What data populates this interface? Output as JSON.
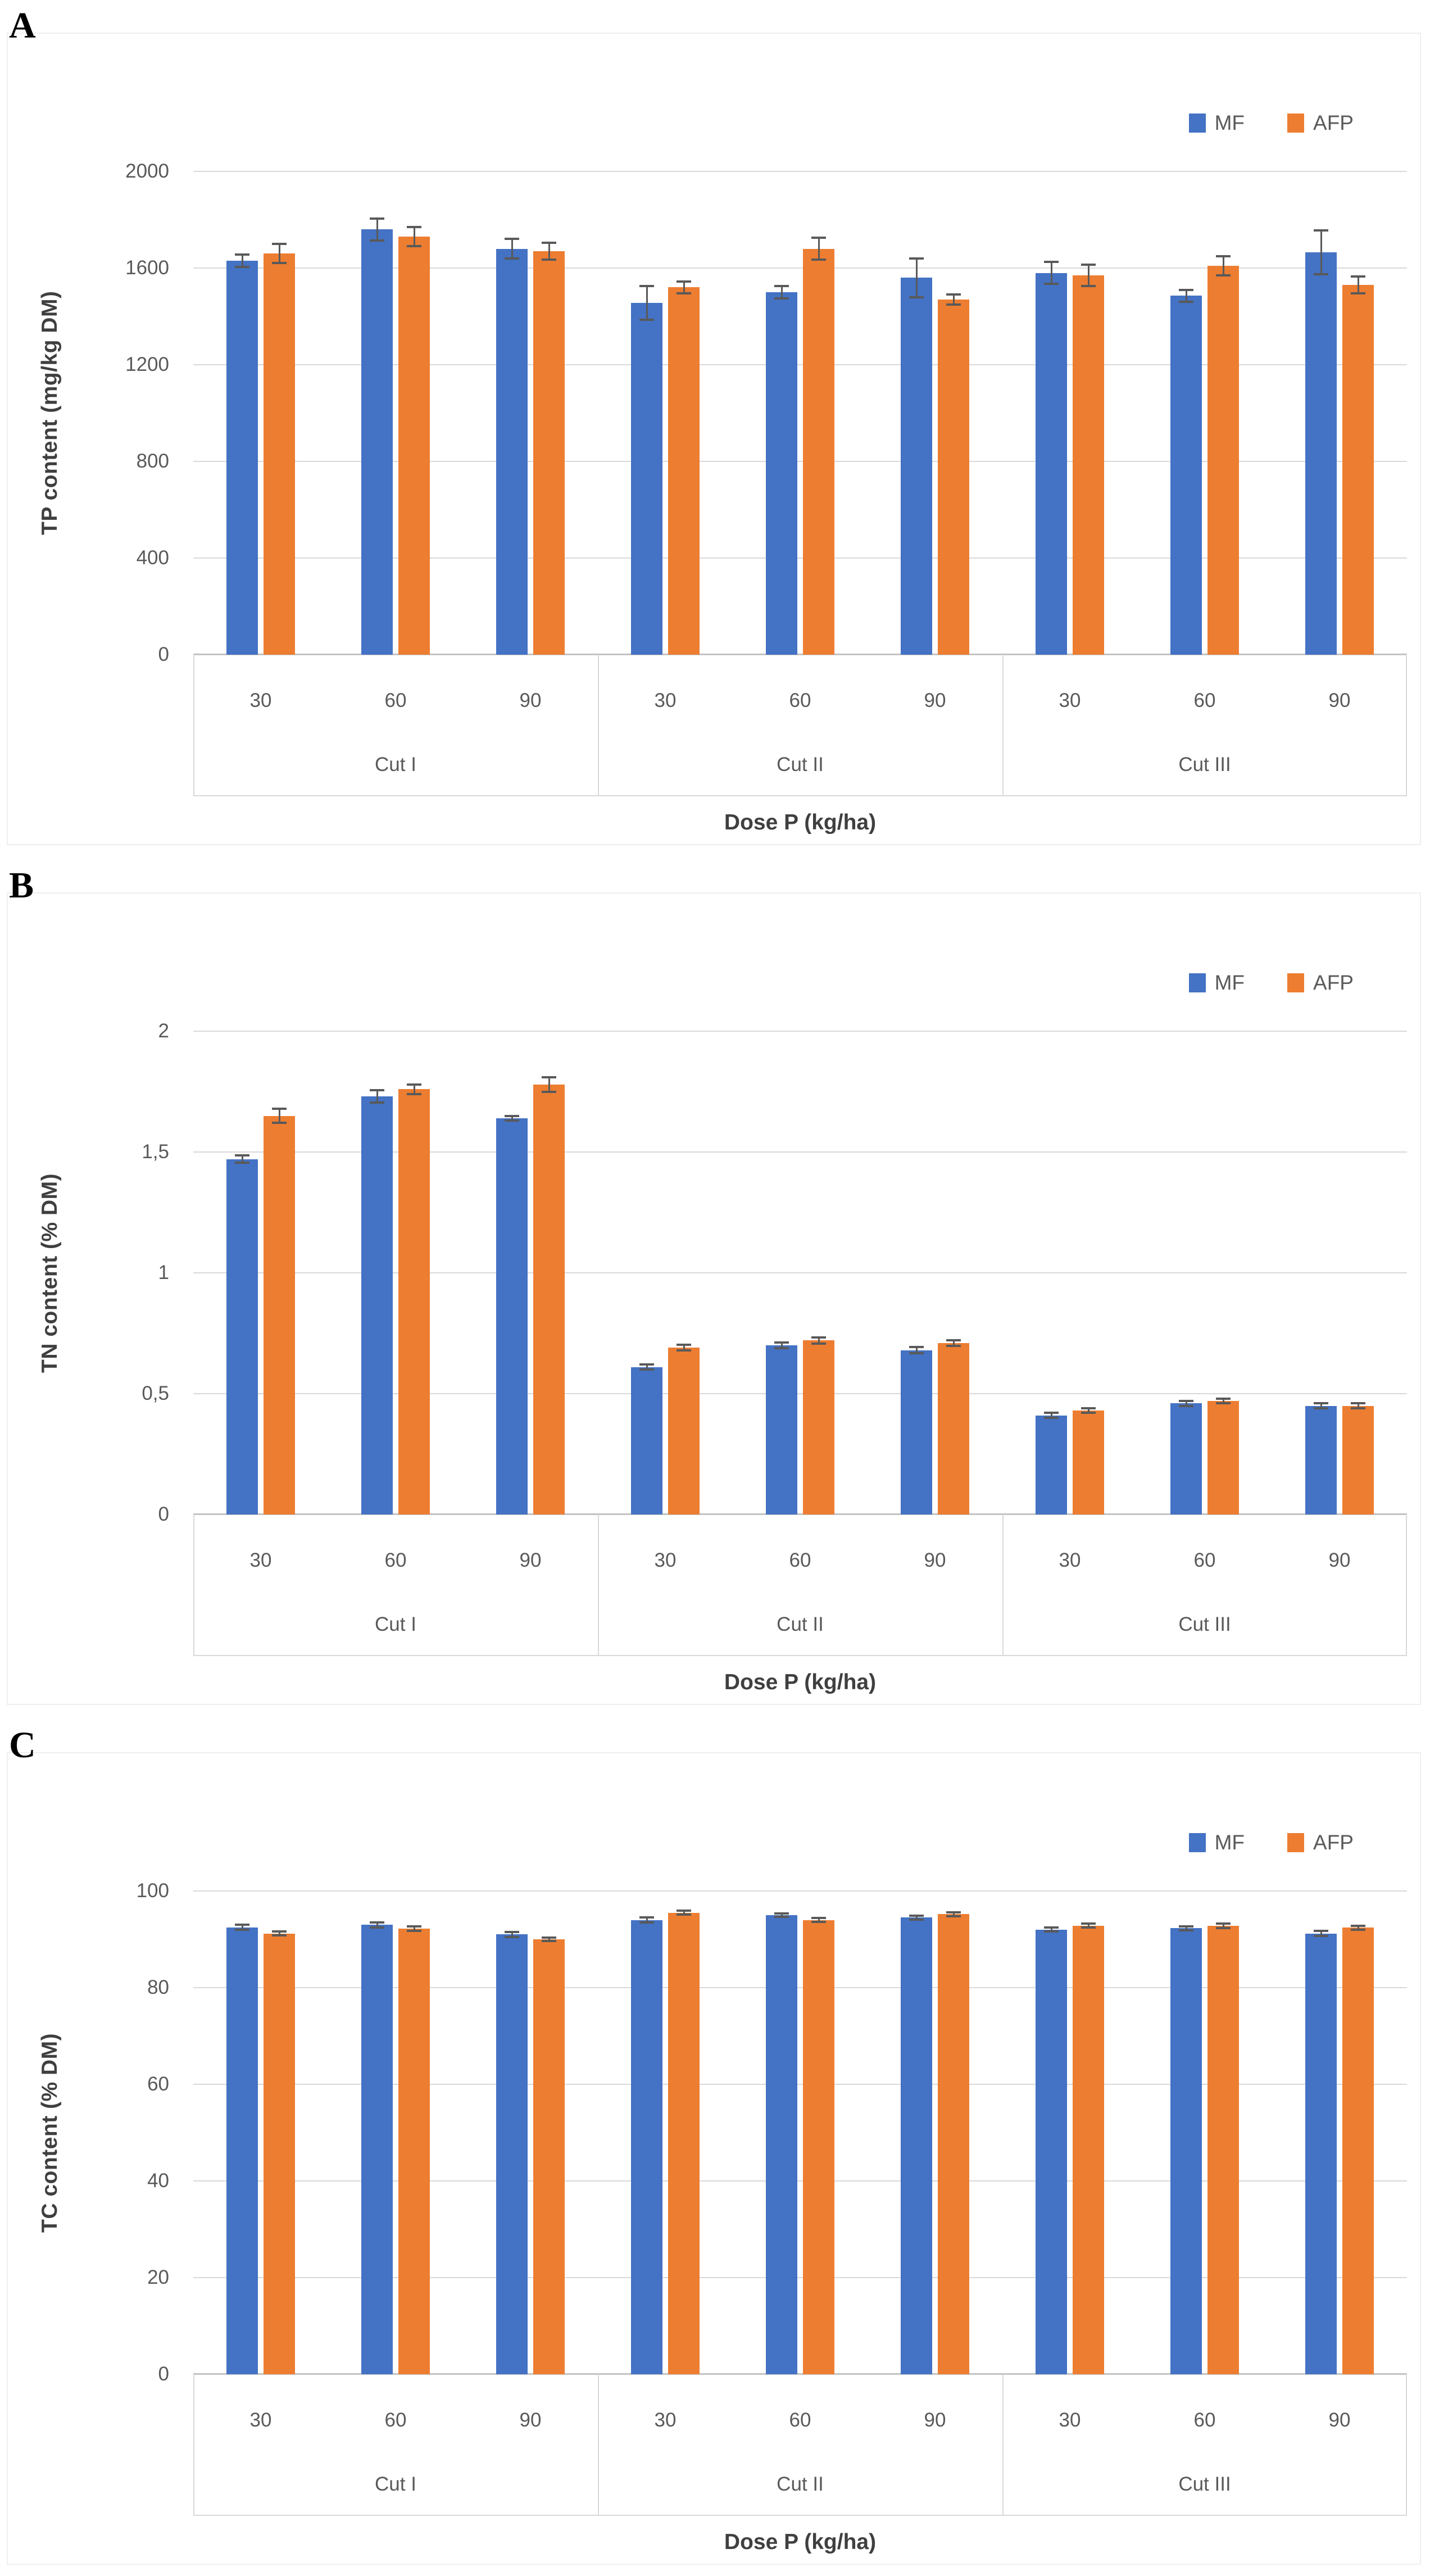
{
  "styles": {
    "mf_color": "#4472C4",
    "afp_color": "#ED7D31",
    "error_bar_color": "#595959",
    "gridline_color": "#D9D9D9",
    "axis_text_color": "#595959",
    "axis_title_color": "#3F3F3F"
  },
  "chart_data": [
    {
      "type": "bar",
      "letter": "A",
      "title": "",
      "ylabel": "TP content  (mg/kg DM)",
      "xlabel": "Dose P (kg/ha)",
      "ylim": [
        0,
        2000
      ],
      "ytick_values": [
        0,
        400,
        800,
        1200,
        1600,
        2000
      ],
      "ytick_labels": [
        "0",
        "400",
        "800",
        "1200",
        "1600",
        "2000"
      ],
      "grid": true,
      "legend_position": "top-right",
      "groups": [
        "Cut I",
        "Cut II",
        "Cut III"
      ],
      "doses": [
        "30",
        "60",
        "90"
      ],
      "series": [
        {
          "name": "MF",
          "color": "#4472C4",
          "values": [
            1630,
            1760,
            1680,
            1455,
            1500,
            1560,
            1580,
            1485,
            1665
          ],
          "errors": [
            25,
            45,
            40,
            70,
            25,
            80,
            45,
            25,
            90
          ]
        },
        {
          "name": "AFP",
          "color": "#ED7D31",
          "values": [
            1660,
            1730,
            1670,
            1520,
            1680,
            1470,
            1570,
            1610,
            1530
          ],
          "errors": [
            40,
            40,
            35,
            25,
            45,
            20,
            45,
            40,
            35
          ]
        }
      ]
    },
    {
      "type": "bar",
      "letter": "B",
      "title": "",
      "ylabel": "TN content  (% DM)",
      "xlabel": "Dose P (kg/ha)",
      "ylim": [
        0,
        2
      ],
      "ytick_values": [
        0,
        0.5,
        1,
        1.5,
        2
      ],
      "ytick_labels": [
        "0",
        "0,5",
        "1",
        "1,5",
        "2"
      ],
      "grid": true,
      "legend_position": "top-right",
      "groups": [
        "Cut I",
        "Cut II",
        "Cut III"
      ],
      "doses": [
        "30",
        "60",
        "90"
      ],
      "series": [
        {
          "name": "MF",
          "color": "#4472C4",
          "values": [
            1.47,
            1.73,
            1.64,
            0.61,
            0.7,
            0.68,
            0.41,
            0.46,
            0.45
          ],
          "errors": [
            0.015,
            0.025,
            0.01,
            0.01,
            0.012,
            0.012,
            0.01,
            0.01,
            0.01
          ]
        },
        {
          "name": "AFP",
          "color": "#ED7D31",
          "values": [
            1.65,
            1.76,
            1.78,
            0.69,
            0.72,
            0.71,
            0.43,
            0.47,
            0.45
          ],
          "errors": [
            0.03,
            0.02,
            0.03,
            0.012,
            0.012,
            0.012,
            0.01,
            0.01,
            0.01
          ]
        }
      ]
    },
    {
      "type": "bar",
      "letter": "C",
      "title": "",
      "ylabel": "TC content  (% DM)",
      "xlabel": "Dose P (kg/ha)",
      "ylim": [
        0,
        100
      ],
      "ytick_values": [
        0,
        20,
        40,
        60,
        80,
        100
      ],
      "ytick_labels": [
        "0",
        "20",
        "40",
        "60",
        "80",
        "100"
      ],
      "grid": true,
      "legend_position": "top-right",
      "groups": [
        "Cut I",
        "Cut II",
        "Cut III"
      ],
      "doses": [
        "30",
        "60",
        "90"
      ],
      "series": [
        {
          "name": "MF",
          "color": "#4472C4",
          "values": [
            92.5,
            93.0,
            91.0,
            94.0,
            95.0,
            94.5,
            92.0,
            92.3,
            91.2
          ],
          "errors": [
            0.5,
            0.5,
            0.5,
            0.5,
            0.4,
            0.4,
            0.4,
            0.4,
            0.5
          ]
        },
        {
          "name": "AFP",
          "color": "#ED7D31",
          "values": [
            91.2,
            92.2,
            90.0,
            95.5,
            94.0,
            95.2,
            92.8,
            92.8,
            92.4
          ],
          "errors": [
            0.4,
            0.5,
            0.4,
            0.4,
            0.4,
            0.4,
            0.4,
            0.5,
            0.4
          ]
        }
      ]
    }
  ]
}
